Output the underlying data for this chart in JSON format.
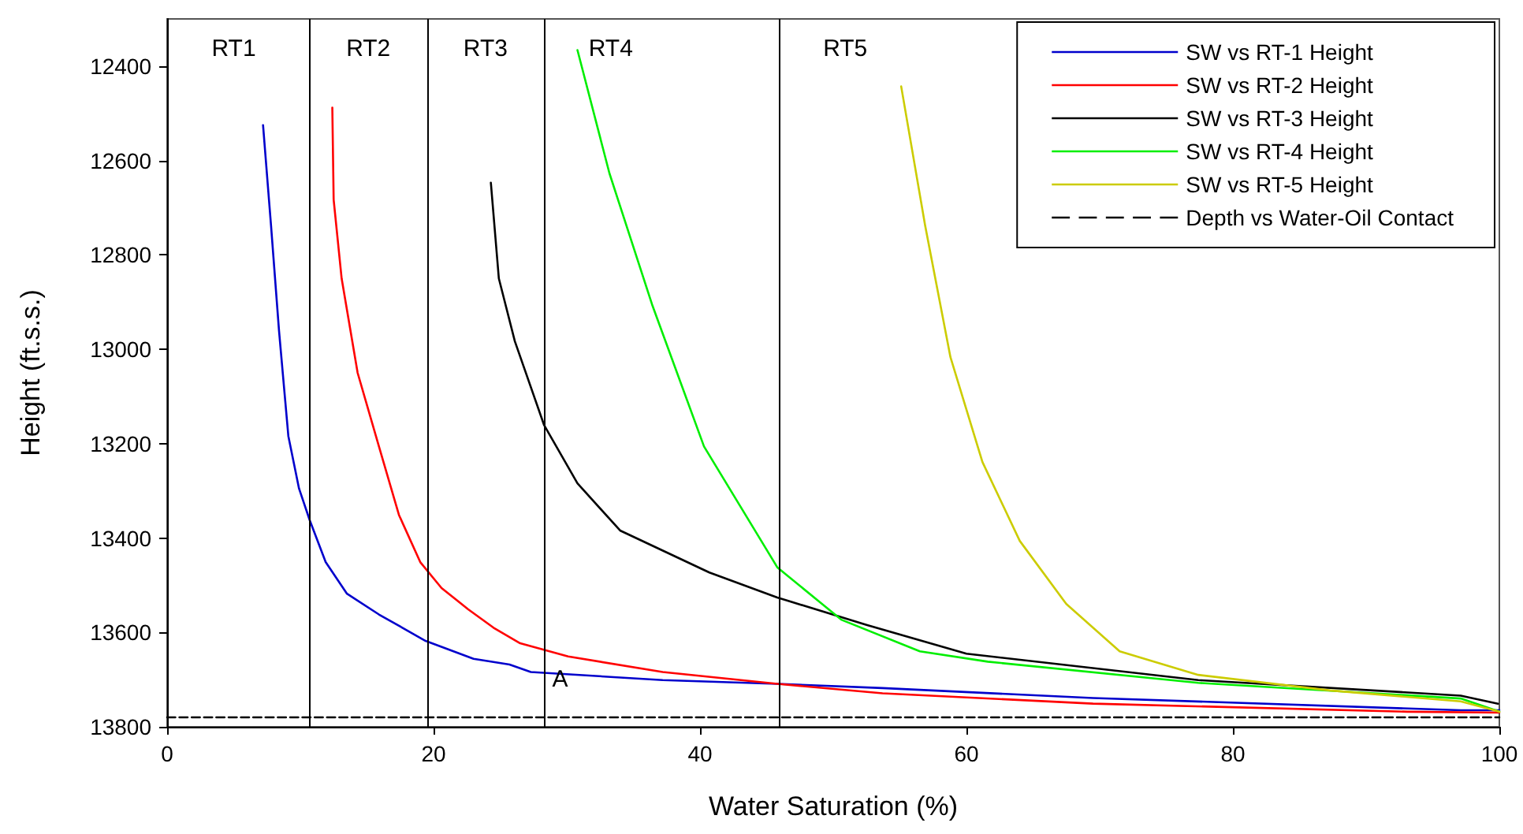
{
  "chart_data": {
    "type": "line",
    "xlabel": "Water Saturation (%)",
    "ylabel": "Height (ft.s.s.)",
    "xlim": [
      0,
      100
    ],
    "xticks": [
      0,
      20,
      40,
      60,
      80,
      100
    ],
    "ylim": [
      13800,
      12300
    ],
    "yticks": [
      12400,
      12600,
      12800,
      13000,
      13200,
      13400,
      13600,
      13800
    ],
    "grid": false,
    "legend": "top right",
    "series": [
      {
        "name": "SW vs RT-1 Height",
        "color": "#0000cc",
        "x": [
          7.2,
          7.8,
          8.4,
          9.1,
          9.9,
          10.7,
          11.9,
          13.5,
          15.9,
          19.4,
          23.0,
          25.7,
          27.3,
          37.2,
          45.8,
          53.7,
          69.5,
          97.1,
          100
        ],
        "values": [
          12525,
          12738,
          12961,
          13184,
          13295,
          13362,
          13451,
          13518,
          13562,
          13618,
          13656,
          13668,
          13684,
          13701,
          13709,
          13718,
          13739,
          13765,
          13765
        ]
      },
      {
        "name": "SW vs RT-2 Height",
        "color": "#ff0000",
        "x": [
          12.4,
          12.5,
          13.1,
          14.3,
          15.9,
          17.4,
          19.0,
          20.6,
          22.6,
          24.5,
          26.5,
          30.1,
          37.2,
          45.8,
          53.7,
          69.5,
          93.1,
          100
        ],
        "values": [
          12488,
          12683,
          12850,
          13050,
          13206,
          13351,
          13451,
          13506,
          13551,
          13590,
          13623,
          13651,
          13684,
          13709,
          13729,
          13751,
          13768,
          13770
        ]
      },
      {
        "name": "SW vs RT-3 Height",
        "color": "#000000",
        "x": [
          24.3,
          24.9,
          26.1,
          28.3,
          30.8,
          34.0,
          40.7,
          45.8,
          52.5,
          60.0,
          77.4,
          97.1,
          99.9
        ],
        "values": [
          12647,
          12850,
          12983,
          13161,
          13284,
          13384,
          13473,
          13526,
          13584,
          13645,
          13701,
          13734,
          13751
        ]
      },
      {
        "name": "SW vs RT-4 Height",
        "color": "#00ee00",
        "x": [
          30.8,
          33.2,
          36.4,
          40.3,
          45.8,
          50.6,
          56.5,
          61.6,
          77.4,
          97.1,
          100
        ],
        "values": [
          12366,
          12627,
          12905,
          13206,
          13462,
          13573,
          13640,
          13662,
          13707,
          13740,
          13768
        ]
      },
      {
        "name": "SW vs RT-5 Height",
        "color": "#cccc00",
        "x": [
          55.1,
          56.9,
          58.8,
          61.2,
          64.0,
          67.5,
          71.5,
          77.4,
          87.3,
          97.1,
          100
        ],
        "values": [
          12443,
          12738,
          13017,
          13239,
          13406,
          13540,
          13640,
          13690,
          13723,
          13746,
          13768
        ]
      },
      {
        "name": "Depth vs Water-Oil Contact",
        "color": "#000000",
        "line_style": "dashed",
        "x": [
          0,
          100
        ],
        "values": [
          13780,
          13780
        ]
      }
    ],
    "ref_lines": [
      {
        "axis": "x",
        "value": 10.7
      },
      {
        "axis": "x",
        "value": 19.5
      },
      {
        "axis": "x",
        "value": 28.3
      },
      {
        "axis": "x",
        "value": 45.9
      }
    ],
    "annotations": [
      "RT1",
      "RT2",
      "RT3",
      "RT4",
      "RT5",
      {
        "text": "A",
        "x": 29.5,
        "y": 13700
      }
    ]
  }
}
